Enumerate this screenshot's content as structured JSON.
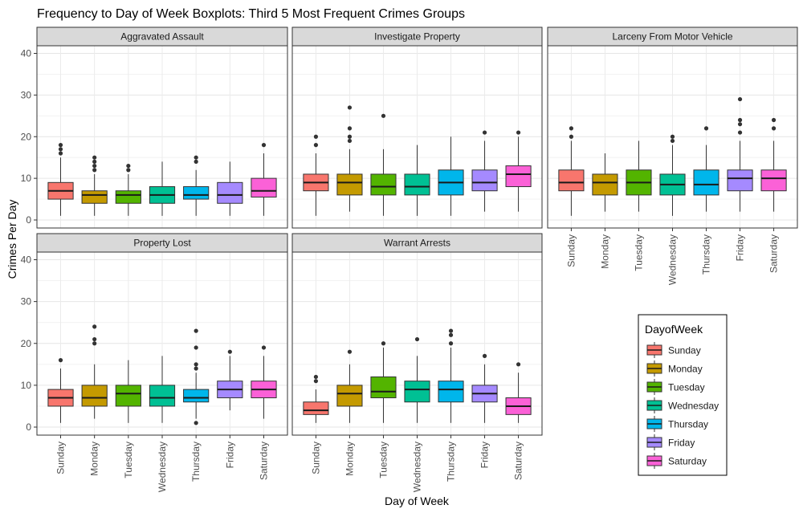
{
  "chart_data": {
    "type": "boxplot",
    "title": "Frequency to Day of Week Boxplots: Third 5 Most Frequent Crimes Groups",
    "xlabel": "Day of Week",
    "ylabel": "Crimes Per Day",
    "ylim": [
      0,
      42
    ],
    "yticks": [
      0,
      10,
      20,
      30,
      40
    ],
    "categories": [
      "Sunday",
      "Monday",
      "Tuesday",
      "Wednesday",
      "Thursday",
      "Friday",
      "Saturday"
    ],
    "colors": [
      "#F8766D",
      "#C49A00",
      "#53B400",
      "#00C094",
      "#00B6EB",
      "#A58AFF",
      "#FB61D7"
    ],
    "legend": {
      "title": "DayofWeek",
      "entries": [
        "Sunday",
        "Monday",
        "Tuesday",
        "Wednesday",
        "Thursday",
        "Friday",
        "Saturday"
      ]
    },
    "panels": [
      {
        "name": "Aggravated Assault",
        "boxes": [
          {
            "min": 1,
            "q1": 5,
            "median": 7,
            "q3": 9,
            "max": 15,
            "outliers": [
              16,
              17,
              18
            ]
          },
          {
            "min": 1,
            "q1": 4,
            "median": 6,
            "q3": 7,
            "max": 11,
            "outliers": [
              12,
              13,
              14,
              15
            ]
          },
          {
            "min": 1,
            "q1": 4,
            "median": 6,
            "q3": 7,
            "max": 11,
            "outliers": [
              12,
              13
            ]
          },
          {
            "min": 1,
            "q1": 4,
            "median": 6,
            "q3": 8,
            "max": 14,
            "outliers": []
          },
          {
            "min": 1,
            "q1": 5,
            "median": 6,
            "q3": 8,
            "max": 12,
            "outliers": [
              14,
              15
            ]
          },
          {
            "min": 1,
            "q1": 4,
            "median": 6,
            "q3": 9,
            "max": 14,
            "outliers": []
          },
          {
            "min": 1,
            "q1": 5.5,
            "median": 7,
            "q3": 10,
            "max": 16,
            "outliers": [
              18
            ]
          }
        ]
      },
      {
        "name": "Investigate Property",
        "boxes": [
          {
            "min": 1,
            "q1": 7,
            "median": 9,
            "q3": 11,
            "max": 16,
            "outliers": [
              18,
              20
            ]
          },
          {
            "min": 2,
            "q1": 6,
            "median": 9,
            "q3": 11,
            "max": 17,
            "outliers": [
              19,
              20,
              22,
              27
            ]
          },
          {
            "min": 1,
            "q1": 6,
            "median": 8,
            "q3": 11,
            "max": 17,
            "outliers": [
              25
            ]
          },
          {
            "min": 1,
            "q1": 6,
            "median": 8,
            "q3": 11,
            "max": 18,
            "outliers": []
          },
          {
            "min": 1,
            "q1": 6,
            "median": 9,
            "q3": 12,
            "max": 20,
            "outliers": []
          },
          {
            "min": 2,
            "q1": 7,
            "median": 9,
            "q3": 12,
            "max": 19,
            "outliers": [
              21
            ]
          },
          {
            "min": 2,
            "q1": 8,
            "median": 11,
            "q3": 13,
            "max": 20,
            "outliers": [
              21
            ]
          }
        ]
      },
      {
        "name": "Larceny From Motor Vehicle",
        "boxes": [
          {
            "min": 1,
            "q1": 7,
            "median": 9,
            "q3": 12,
            "max": 19,
            "outliers": [
              20,
              22
            ]
          },
          {
            "min": 2,
            "q1": 6,
            "median": 9,
            "q3": 11,
            "max": 16,
            "outliers": []
          },
          {
            "min": 2,
            "q1": 6,
            "median": 9,
            "q3": 12,
            "max": 19,
            "outliers": []
          },
          {
            "min": 1,
            "q1": 6,
            "median": 8.5,
            "q3": 11,
            "max": 18,
            "outliers": [
              19,
              20
            ]
          },
          {
            "min": 2,
            "q1": 6,
            "median": 8.5,
            "q3": 12,
            "max": 18,
            "outliers": [
              22
            ]
          },
          {
            "min": 2,
            "q1": 7,
            "median": 10,
            "q3": 12,
            "max": 19,
            "outliers": [
              21,
              23,
              24,
              29
            ]
          },
          {
            "min": 2,
            "q1": 7,
            "median": 10,
            "q3": 12,
            "max": 19,
            "outliers": [
              22,
              24
            ]
          }
        ]
      },
      {
        "name": "Property Lost",
        "boxes": [
          {
            "min": 1,
            "q1": 5,
            "median": 7,
            "q3": 9,
            "max": 14,
            "outliers": [
              16
            ]
          },
          {
            "min": 2,
            "q1": 5,
            "median": 7,
            "q3": 10,
            "max": 15,
            "outliers": [
              20,
              21,
              24
            ]
          },
          {
            "min": 1,
            "q1": 5,
            "median": 8,
            "q3": 10,
            "max": 16,
            "outliers": []
          },
          {
            "min": 1,
            "q1": 5,
            "median": 7,
            "q3": 10,
            "max": 17,
            "outliers": []
          },
          {
            "min": 2,
            "q1": 6,
            "median": 7,
            "q3": 9,
            "max": 13,
            "outliers": [
              1,
              14,
              15,
              19,
              23
            ]
          },
          {
            "min": 4,
            "q1": 7,
            "median": 9,
            "q3": 11,
            "max": 17,
            "outliers": [
              18
            ]
          },
          {
            "min": 2,
            "q1": 7,
            "median": 9,
            "q3": 11,
            "max": 17,
            "outliers": [
              19
            ]
          }
        ]
      },
      {
        "name": "Warrant Arrests",
        "boxes": [
          {
            "min": 1,
            "q1": 3,
            "median": 4,
            "q3": 6,
            "max": 9,
            "outliers": [
              11,
              12
            ]
          },
          {
            "min": 1,
            "q1": 5,
            "median": 8,
            "q3": 10,
            "max": 15,
            "outliers": [
              18
            ]
          },
          {
            "min": 1,
            "q1": 7,
            "median": 8.5,
            "q3": 12,
            "max": 19,
            "outliers": [
              20
            ]
          },
          {
            "min": 1,
            "q1": 6,
            "median": 9,
            "q3": 11,
            "max": 17,
            "outliers": [
              21
            ]
          },
          {
            "min": 1,
            "q1": 6,
            "median": 9,
            "q3": 11,
            "max": 19,
            "outliers": [
              20,
              22,
              23
            ]
          },
          {
            "min": 1,
            "q1": 6,
            "median": 8,
            "q3": 10,
            "max": 15,
            "outliers": [
              17
            ]
          },
          {
            "min": 1,
            "q1": 3,
            "median": 5,
            "q3": 7,
            "max": 13,
            "outliers": [
              15
            ]
          }
        ]
      }
    ]
  }
}
